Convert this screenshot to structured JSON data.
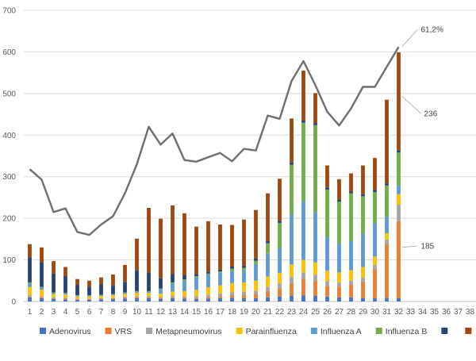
{
  "chart_data": {
    "type": "bar",
    "stacked": true,
    "title": "",
    "xlabel": "",
    "ylabel": "",
    "ylim": [
      0,
      700
    ],
    "yticks": [
      0,
      100,
      200,
      300,
      400,
      500,
      600,
      700
    ],
    "grid": true,
    "legend_position": "bottom",
    "categories": [
      "1",
      "2",
      "3",
      "4",
      "5",
      "6",
      "7",
      "8",
      "9",
      "10",
      "11",
      "12",
      "13",
      "14",
      "15",
      "16",
      "17",
      "18",
      "19",
      "20",
      "21",
      "22",
      "23",
      "24",
      "25",
      "26",
      "27",
      "28",
      "29",
      "30",
      "31",
      "32",
      "33",
      "34",
      "35",
      "36",
      "37",
      "38"
    ],
    "series": [
      {
        "name": "Adenovirus",
        "color": "#4472C4",
        "values": [
          10,
          8,
          6,
          5,
          4,
          4,
          5,
          6,
          7,
          8,
          8,
          6,
          8,
          7,
          6,
          7,
          8,
          9,
          8,
          8,
          10,
          12,
          14,
          15,
          14,
          12,
          10,
          10,
          8,
          8,
          9,
          8,
          0,
          0,
          0,
          0,
          0,
          0
        ]
      },
      {
        "name": "VRS",
        "color": "#ED7D31",
        "values": [
          3,
          3,
          2,
          2,
          2,
          2,
          2,
          2,
          3,
          3,
          3,
          3,
          3,
          3,
          3,
          4,
          5,
          6,
          8,
          10,
          15,
          20,
          30,
          40,
          35,
          25,
          25,
          30,
          40,
          70,
          130,
          185,
          0,
          0,
          0,
          0,
          0,
          0
        ]
      },
      {
        "name": "Metapneumovirus",
        "color": "#A5A5A5",
        "values": [
          2,
          2,
          2,
          2,
          1,
          1,
          1,
          1,
          2,
          2,
          2,
          2,
          3,
          3,
          4,
          5,
          6,
          7,
          8,
          8,
          10,
          12,
          15,
          15,
          15,
          12,
          10,
          10,
          10,
          10,
          10,
          40,
          0,
          0,
          0,
          0,
          0,
          0
        ]
      },
      {
        "name": "Parainfluenza",
        "color": "#FFC000",
        "values": [
          20,
          15,
          8,
          8,
          5,
          5,
          5,
          6,
          6,
          8,
          8,
          8,
          10,
          12,
          15,
          18,
          20,
          22,
          22,
          24,
          25,
          25,
          30,
          30,
          30,
          25,
          25,
          25,
          25,
          20,
          15,
          25,
          0,
          0,
          0,
          0,
          0,
          0
        ]
      },
      {
        "name": "Influenza A",
        "color": "#5B9BD5",
        "values": [
          8,
          5,
          3,
          3,
          2,
          2,
          2,
          2,
          3,
          3,
          3,
          10,
          20,
          25,
          30,
          30,
          30,
          30,
          30,
          40,
          55,
          60,
          120,
          140,
          120,
          80,
          70,
          70,
          80,
          80,
          40,
          20,
          0,
          0,
          0,
          0,
          0,
          0
        ]
      },
      {
        "name": "Influenza B",
        "color": "#70AD47",
        "values": [
          3,
          2,
          1,
          1,
          1,
          1,
          1,
          1,
          1,
          1,
          1,
          2,
          2,
          3,
          3,
          3,
          3,
          5,
          5,
          8,
          25,
          60,
          120,
          190,
          210,
          115,
          100,
          115,
          90,
          75,
          75,
          80,
          0,
          0,
          0,
          0,
          0,
          0
        ]
      },
      {
        "name": "",
        "color": "#264478",
        "values": [
          60,
          60,
          45,
          40,
          25,
          20,
          25,
          20,
          25,
          50,
          45,
          25,
          20,
          10,
          5,
          5,
          5,
          5,
          5,
          5,
          5,
          5,
          5,
          5,
          5,
          5,
          5,
          5,
          5,
          5,
          5,
          5,
          0,
          0,
          0,
          0,
          0,
          0
        ]
      },
      {
        "name": "",
        "color": "#9E480E",
        "values": [
          32,
          35,
          30,
          22,
          14,
          15,
          17,
          27,
          41,
          76,
          155,
          143,
          165,
          149,
          114,
          121,
          108,
          100,
          111,
          117,
          115,
          101,
          106,
          120,
          72,
          53,
          49,
          43,
          69,
          77,
          201,
          236,
          0,
          0,
          0,
          0,
          0,
          0
        ]
      }
    ],
    "line": {
      "name": "",
      "color": "#6E6E6E",
      "values": [
        318,
        293,
        215,
        224,
        167,
        160,
        185,
        205,
        260,
        330,
        420,
        377,
        404,
        340,
        336,
        347,
        357,
        337,
        367,
        363,
        447,
        439,
        530,
        578,
        520,
        456,
        423,
        464,
        516,
        516,
        564,
        612
      ]
    },
    "annotations": [
      {
        "text": "61,2%",
        "x": "32",
        "y": 612
      },
      {
        "text": "236",
        "x": "32",
        "y": 494
      },
      {
        "text": "185",
        "x": "32",
        "y": 130
      }
    ]
  }
}
